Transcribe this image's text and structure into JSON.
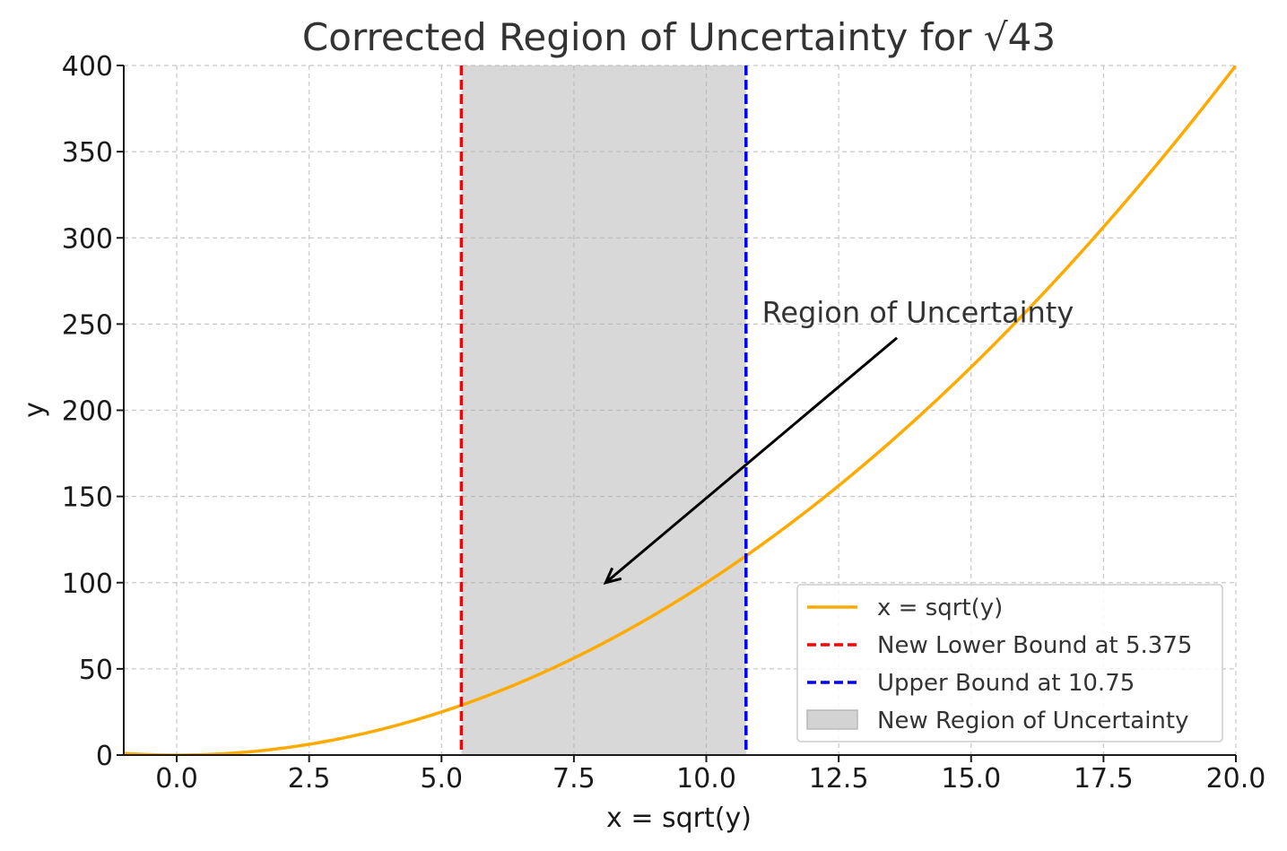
{
  "chart_data": {
    "type": "line",
    "title": "Corrected Region of Uncertainty for √43",
    "xlabel": "x = sqrt(y)",
    "ylabel": "y",
    "xlim": [
      -1,
      20
    ],
    "ylim": [
      0,
      400
    ],
    "xticks": [
      0.0,
      2.5,
      5.0,
      7.5,
      10.0,
      12.5,
      15.0,
      17.5,
      20.0
    ],
    "xtick_labels": [
      "0.0",
      "2.5",
      "5.0",
      "7.5",
      "10.0",
      "12.5",
      "15.0",
      "17.5",
      "20.0"
    ],
    "yticks": [
      0,
      50,
      100,
      150,
      200,
      250,
      300,
      350,
      400
    ],
    "ytick_labels": [
      "0",
      "50",
      "100",
      "150",
      "200",
      "250",
      "300",
      "350",
      "400"
    ],
    "grid": true,
    "curve": {
      "name": "x = sqrt(y)",
      "function": "y = x^2",
      "x_range": [
        -1,
        20
      ],
      "color": "#ffaa00"
    },
    "vlines": [
      {
        "name": "New Lower Bound at 5.375",
        "x": 5.375,
        "color": "#ff0000",
        "style": "dashed"
      },
      {
        "name": "Upper Bound at 10.75",
        "x": 10.75,
        "color": "#0000ff",
        "style": "dashed"
      }
    ],
    "shaded_region": {
      "name": "New Region of Uncertainty",
      "x_start": 5.375,
      "x_end": 10.75,
      "color": "#d3d3d3"
    },
    "annotation": {
      "text": "Region of Uncertainty",
      "text_at": [
        11,
        250
      ],
      "arrow_to": [
        8.1,
        100
      ]
    },
    "legend_position": "lower right",
    "legend": [
      {
        "label": "x = sqrt(y)",
        "kind": "line",
        "color": "#ffaa00"
      },
      {
        "label": "New Lower Bound at 5.375",
        "kind": "dashed",
        "color": "#ff0000"
      },
      {
        "label": "Upper Bound at 10.75",
        "kind": "dashed",
        "color": "#0000ff"
      },
      {
        "label": "New Region of Uncertainty",
        "kind": "patch",
        "color": "#d3d3d3"
      }
    ]
  }
}
